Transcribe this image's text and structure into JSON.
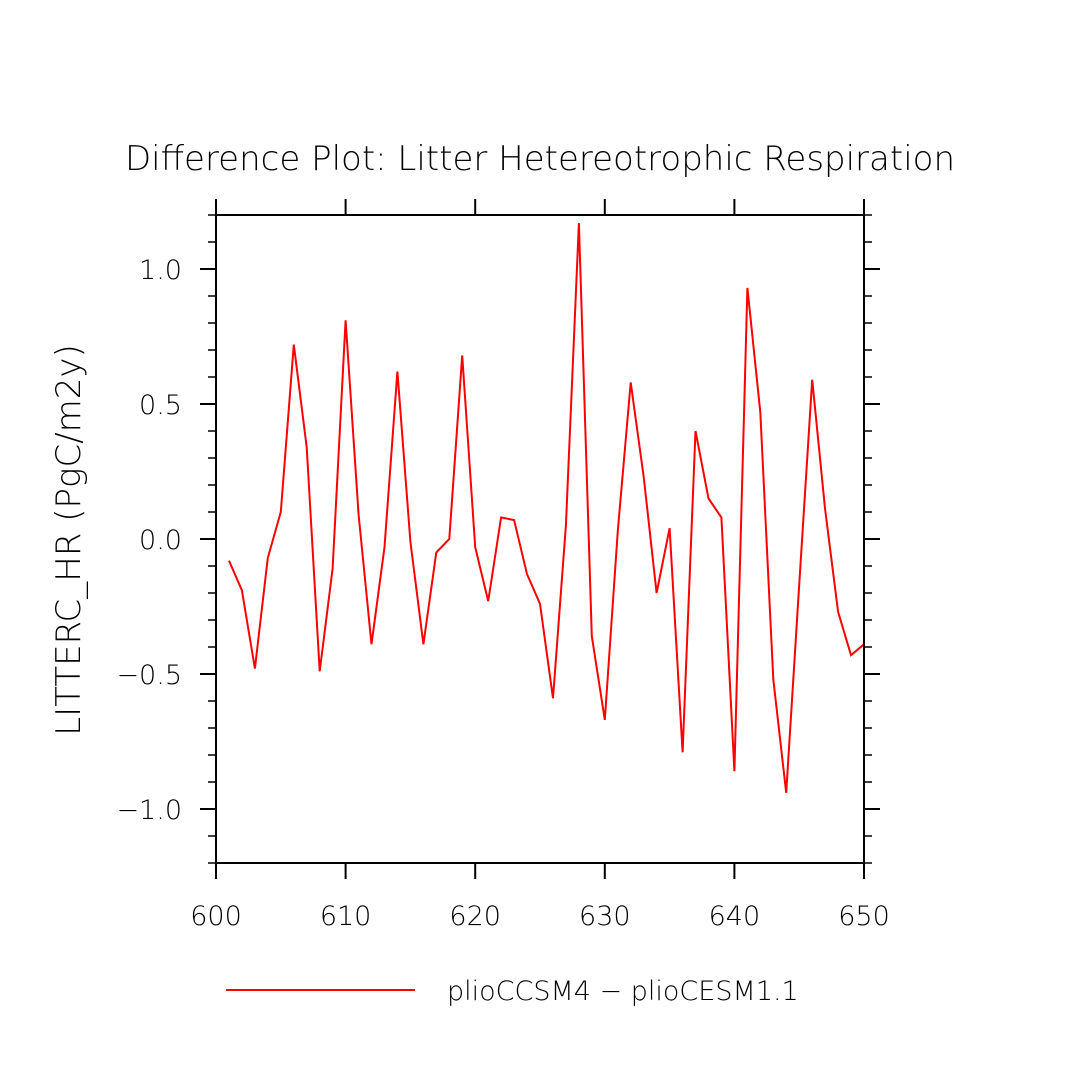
{
  "chart_data": {
    "type": "line",
    "title": "Difference Plot: Litter Hetereotrophic Respiration",
    "xlabel": "",
    "ylabel": "LITTERC_HR  (PgC/m2y)",
    "xlim": [
      600,
      650
    ],
    "ylim": [
      -1.2,
      1.2
    ],
    "x_ticks": [
      600,
      610,
      620,
      630,
      640,
      650
    ],
    "x_tick_labels": [
      "600",
      "610",
      "620",
      "630",
      "640",
      "650"
    ],
    "y_ticks": [
      -1.0,
      -0.5,
      0.0,
      0.5,
      1.0
    ],
    "y_tick_labels": [
      "−1.0",
      "−0.5",
      "0.0",
      "0.5",
      "1.0"
    ],
    "grid": false,
    "legend_position": "bottom",
    "series": [
      {
        "name": "plioCCSM4 − plioCESM1.1",
        "color": "#ff0000",
        "x": [
          601,
          602,
          603,
          604,
          605,
          606,
          607,
          608,
          609,
          610,
          611,
          612,
          613,
          614,
          615,
          616,
          617,
          618,
          619,
          620,
          621,
          622,
          623,
          624,
          625,
          626,
          627,
          628,
          629,
          630,
          631,
          632,
          633,
          634,
          635,
          636,
          637,
          638,
          639,
          640,
          641,
          642,
          643,
          644,
          645,
          646,
          647,
          648,
          649,
          650
        ],
        "values": [
          -0.08,
          -0.19,
          -0.48,
          -0.07,
          0.1,
          0.72,
          0.34,
          -0.49,
          -0.11,
          0.81,
          0.09,
          -0.39,
          -0.03,
          0.62,
          -0.01,
          -0.39,
          -0.05,
          0.0,
          0.68,
          -0.03,
          -0.23,
          0.08,
          0.07,
          -0.13,
          -0.24,
          -0.59,
          0.05,
          1.17,
          -0.36,
          -0.67,
          0.03,
          0.58,
          0.23,
          -0.2,
          0.04,
          -0.79,
          0.4,
          0.15,
          0.08,
          -0.86,
          0.93,
          0.47,
          -0.52,
          -0.94,
          -0.17,
          0.59,
          0.11,
          -0.27,
          -0.43,
          -0.39
        ]
      }
    ]
  }
}
